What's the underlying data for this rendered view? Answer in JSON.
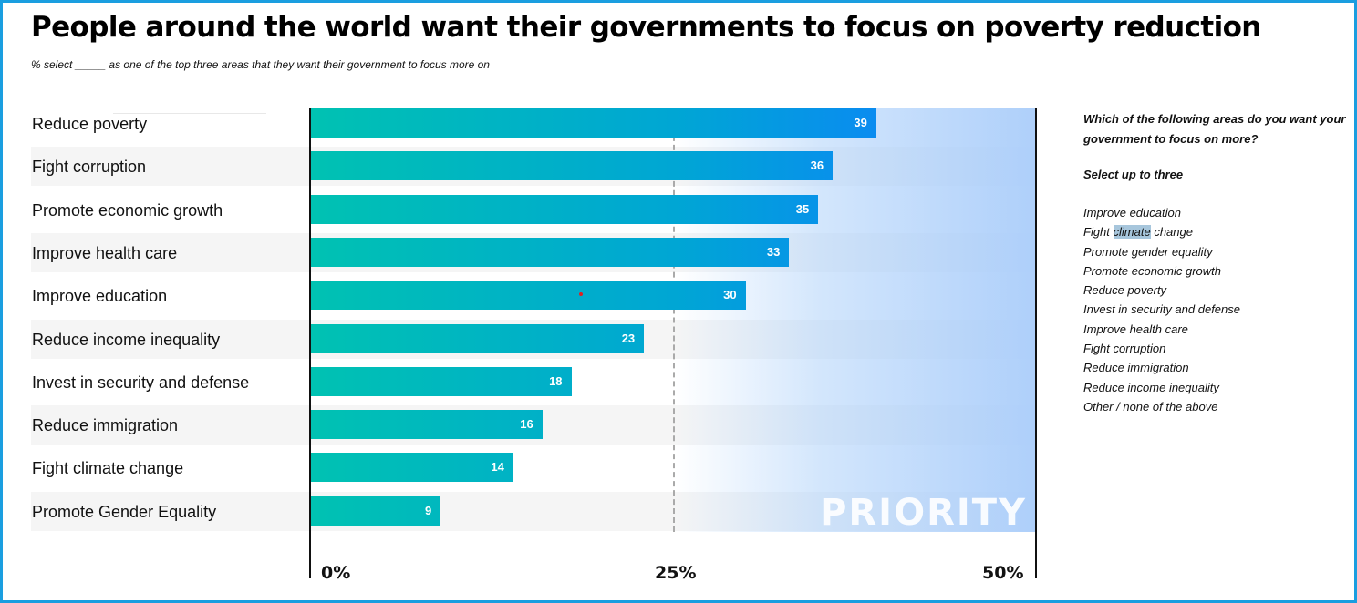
{
  "title": "People around the world want their governments to focus on poverty reduction",
  "subtitle": "% select _____ as one of the top three areas that they want their government to focus more on",
  "colors": {
    "frame": "#1a9ee0",
    "bar_start": "#00c2b2",
    "bar_end": "#0a8cf0",
    "priority_zone": "#aacdfa"
  },
  "chart_data": {
    "type": "bar",
    "orientation": "horizontal",
    "categories": [
      "Reduce poverty",
      "Fight corruption",
      "Promote economic growth",
      "Improve health care",
      "Improve education",
      "Reduce income inequality",
      "Invest in security and defense",
      "Reduce immigration",
      "Fight climate change",
      "Promote Gender Equality"
    ],
    "values": [
      39,
      36,
      35,
      33,
      30,
      23,
      18,
      16,
      14,
      9
    ],
    "xlim": [
      0,
      50
    ],
    "x_ticks": [
      "0%",
      "25%",
      "50%"
    ],
    "reference_line": 25,
    "annotation": "PRIORITY",
    "grid": false
  },
  "sidebar": {
    "question": "Which of the following areas do you want your government to focus on more?",
    "instruction": "Select up to three",
    "options": [
      "Improve education",
      "Fight climate change",
      "Promote gender equality",
      "Promote economic growth",
      "Reduce poverty",
      "Invest in security and defense",
      "Improve health care",
      "Fight corruption",
      "Reduce immigration",
      "Reduce income inequality",
      "Other / none of the above"
    ],
    "climate_parts": [
      "Fight ",
      "climate",
      " change"
    ]
  }
}
